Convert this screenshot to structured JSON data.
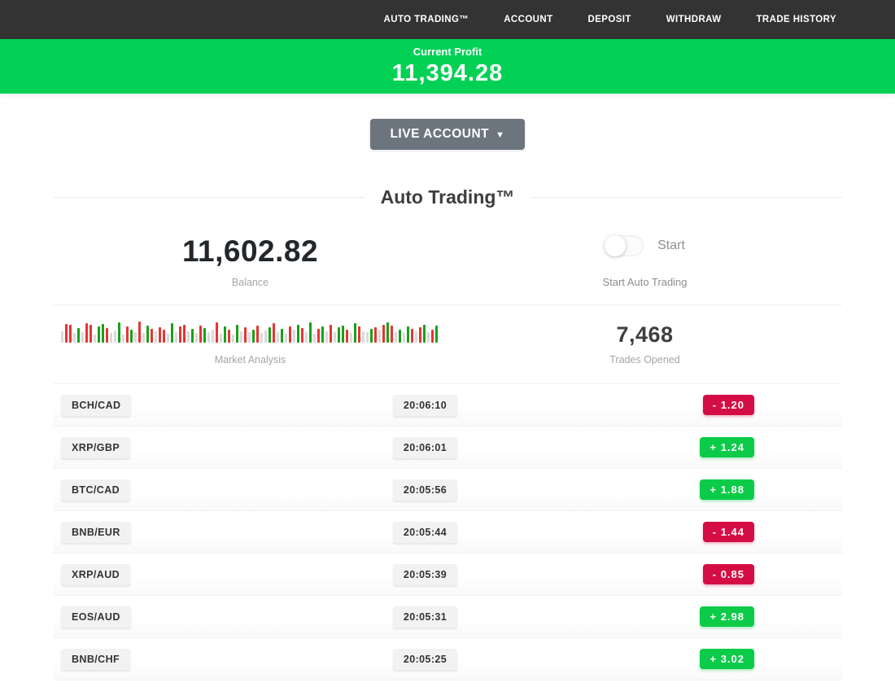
{
  "nav": {
    "items": [
      "AUTO TRADING™",
      "ACCOUNT",
      "DEPOSIT",
      "WITHDRAW",
      "TRADE HISTORY"
    ]
  },
  "profit_banner": {
    "label": "Current Profit",
    "value": "11,394.28",
    "bg_color": "#02d155"
  },
  "account_selector": {
    "label": "LIVE ACCOUNT",
    "caret": "▼"
  },
  "section": {
    "title": "Auto Trading™"
  },
  "stats": {
    "balance": {
      "value": "11,602.82",
      "label": "Balance"
    },
    "auto_trading": {
      "toggle_state": "off",
      "toggle_label": "Start",
      "caption": "Start Auto Trading"
    },
    "market": {
      "label": "Market Analysis"
    },
    "trades": {
      "value": "7,468",
      "label": "Trades Opened"
    }
  },
  "chart_data": {
    "type": "bar",
    "title": "Market Analysis",
    "note": "decorative candlestick-style strip; color g=green up, r=red down, n=neutral gray; height = % of 26px strip",
    "bars": [
      [
        "n",
        52
      ],
      [
        "r",
        88
      ],
      [
        "r",
        84
      ],
      [
        "n",
        46
      ],
      [
        "g",
        70
      ],
      [
        "n",
        50
      ],
      [
        "r",
        92
      ],
      [
        "r",
        86
      ],
      [
        "n",
        40
      ],
      [
        "g",
        76
      ],
      [
        "g",
        88
      ],
      [
        "r",
        70
      ],
      [
        "n",
        46
      ],
      [
        "n",
        56
      ],
      [
        "g",
        96
      ],
      [
        "n",
        40
      ],
      [
        "r",
        76
      ],
      [
        "g",
        60
      ],
      [
        "n",
        50
      ],
      [
        "r",
        100
      ],
      [
        "n",
        46
      ],
      [
        "g",
        82
      ],
      [
        "r",
        64
      ],
      [
        "n",
        54
      ],
      [
        "r",
        72
      ],
      [
        "r",
        60
      ],
      [
        "n",
        44
      ],
      [
        "g",
        92
      ],
      [
        "n",
        50
      ],
      [
        "r",
        76
      ],
      [
        "r",
        86
      ],
      [
        "n",
        54
      ],
      [
        "g",
        66
      ],
      [
        "n",
        46
      ],
      [
        "r",
        82
      ],
      [
        "g",
        70
      ],
      [
        "n",
        50
      ],
      [
        "n",
        60
      ],
      [
        "r",
        96
      ],
      [
        "n",
        44
      ],
      [
        "g",
        76
      ],
      [
        "r",
        60
      ],
      [
        "n",
        40
      ],
      [
        "g",
        86
      ],
      [
        "n",
        54
      ],
      [
        "r",
        72
      ],
      [
        "n",
        50
      ],
      [
        "g",
        62
      ],
      [
        "r",
        82
      ],
      [
        "n",
        46
      ],
      [
        "n",
        56
      ],
      [
        "g",
        72
      ],
      [
        "r",
        92
      ],
      [
        "n",
        50
      ],
      [
        "g",
        66
      ],
      [
        "n",
        44
      ],
      [
        "r",
        76
      ],
      [
        "n",
        60
      ],
      [
        "g",
        86
      ],
      [
        "r",
        70
      ],
      [
        "n",
        50
      ],
      [
        "g",
        96
      ],
      [
        "n",
        44
      ],
      [
        "r",
        66
      ],
      [
        "g",
        76
      ],
      [
        "n",
        54
      ],
      [
        "r",
        86
      ],
      [
        "n",
        50
      ],
      [
        "g",
        72
      ],
      [
        "g",
        82
      ],
      [
        "r",
        62
      ],
      [
        "n",
        46
      ],
      [
        "g",
        92
      ],
      [
        "r",
        76
      ],
      [
        "n",
        54
      ],
      [
        "n",
        50
      ],
      [
        "g",
        66
      ],
      [
        "r",
        72
      ],
      [
        "n",
        60
      ],
      [
        "r",
        86
      ],
      [
        "g",
        96
      ],
      [
        "r",
        82
      ],
      [
        "n",
        50
      ],
      [
        "g",
        62
      ],
      [
        "n",
        46
      ],
      [
        "g",
        76
      ],
      [
        "r",
        66
      ],
      [
        "n",
        54
      ],
      [
        "r",
        72
      ],
      [
        "g",
        86
      ],
      [
        "n",
        50
      ],
      [
        "r",
        62
      ],
      [
        "g",
        82
      ]
    ]
  },
  "trades_table": {
    "rows": [
      {
        "pair": "BCH/CAD",
        "time": "20:06:10",
        "change": "-  1.20",
        "direction": "loss"
      },
      {
        "pair": "XRP/GBP",
        "time": "20:06:01",
        "change": "+  1.24",
        "direction": "gain"
      },
      {
        "pair": "BTC/CAD",
        "time": "20:05:56",
        "change": "+  1.88",
        "direction": "gain"
      },
      {
        "pair": "BNB/EUR",
        "time": "20:05:44",
        "change": "-  1.44",
        "direction": "loss"
      },
      {
        "pair": "XRP/AUD",
        "time": "20:05:39",
        "change": "-  0.85",
        "direction": "loss"
      },
      {
        "pair": "EOS/AUD",
        "time": "20:05:31",
        "change": "+  2.98",
        "direction": "gain"
      },
      {
        "pair": "BNB/CHF",
        "time": "20:05:25",
        "change": "+  3.02",
        "direction": "gain"
      }
    ]
  },
  "colors": {
    "nav_bg": "#333333",
    "banner_green": "#02d155",
    "gain_badge": "#0ccb49",
    "loss_badge": "#d40e45",
    "button_gray": "#6c757d"
  }
}
